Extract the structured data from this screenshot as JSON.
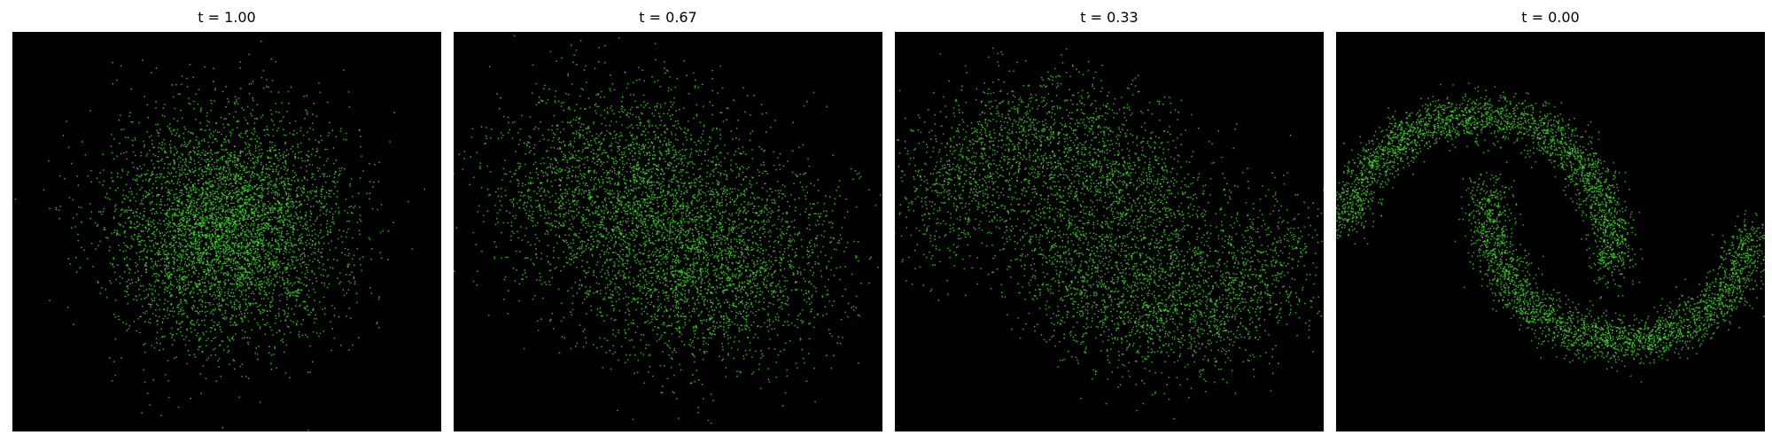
{
  "colors": {
    "background": "#000000",
    "point": "#39e61f"
  },
  "chart_data": [
    {
      "type": "scatter",
      "title": "t = 1.00",
      "t": 1.0,
      "shape": "gaussian-cloud",
      "n_points": 5000,
      "xlim": [
        -3.2,
        3.2
      ],
      "ylim": [
        -3.0,
        3.0
      ],
      "axes_visible": false,
      "grid": false
    },
    {
      "type": "scatter",
      "title": "t = 0.67",
      "t": 0.67,
      "shape": "blurred-two-moons",
      "n_points": 5000,
      "xlim": [
        -3.2,
        3.2
      ],
      "ylim": [
        -3.0,
        3.0
      ],
      "axes_visible": false,
      "grid": false
    },
    {
      "type": "scatter",
      "title": "t = 0.33",
      "t": 0.33,
      "shape": "two-moons",
      "n_points": 5000,
      "xlim": [
        -3.2,
        3.2
      ],
      "ylim": [
        -3.0,
        3.0
      ],
      "axes_visible": false,
      "grid": false
    },
    {
      "type": "scatter",
      "title": "t = 0.00",
      "t": 0.0,
      "shape": "sharp-two-moons",
      "n_points": 5000,
      "xlim": [
        -3.2,
        3.2
      ],
      "ylim": [
        -3.0,
        3.0
      ],
      "axes_visible": false,
      "grid": false
    }
  ]
}
